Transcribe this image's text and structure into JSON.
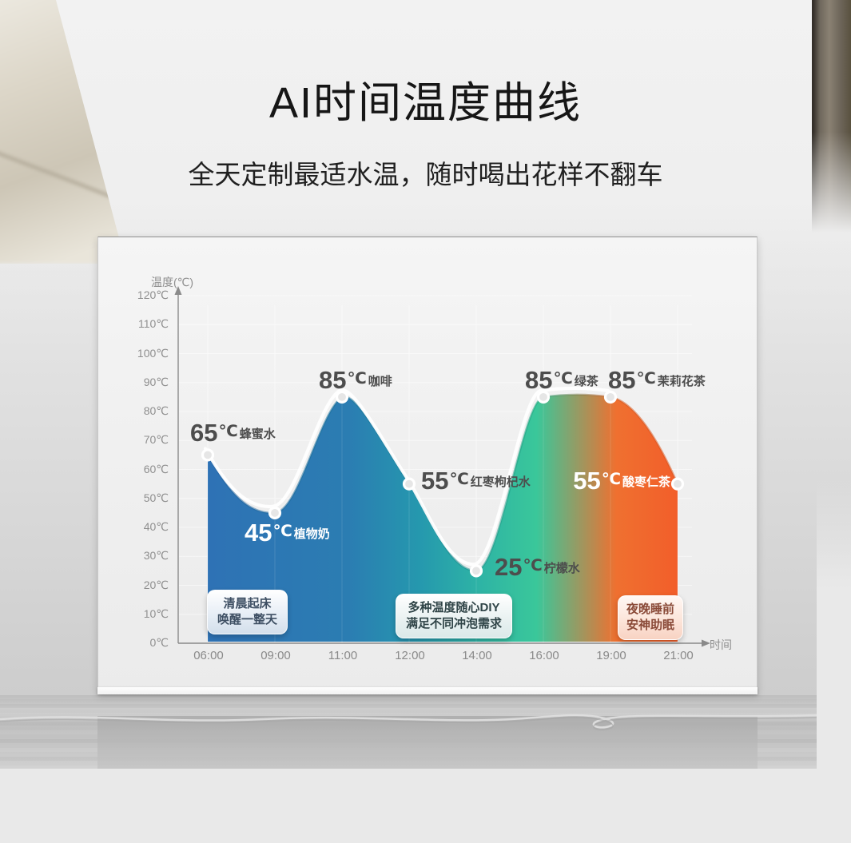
{
  "header": {
    "title": "AI时间温度曲线",
    "subtitle": "全天定制最适水温，随时喝出花样不翻车"
  },
  "chart_data": {
    "type": "area",
    "title": "AI时间温度曲线",
    "xlabel": "时间",
    "ylabel": "温度(℃)",
    "unit": "℃",
    "ylim": [
      0,
      120
    ],
    "y_tick_step": 10,
    "grid": true,
    "legend": false,
    "y_ticks": [
      "120℃",
      "110℃",
      "100℃",
      "90℃",
      "80℃",
      "70℃",
      "60℃",
      "50℃",
      "40℃",
      "30℃",
      "20℃",
      "10℃",
      "0℃"
    ],
    "x_ticks": [
      "06:00",
      "09:00",
      "11:00",
      "12:00",
      "14:00",
      "16:00",
      "19:00",
      "21:00"
    ],
    "series": [
      {
        "name": "AI时间温度曲线",
        "points": [
          {
            "time": "06:00",
            "temp": 65,
            "drink": "蜂蜜水"
          },
          {
            "time": "09:00",
            "temp": 45,
            "drink": "植物奶"
          },
          {
            "time": "11:00",
            "temp": 85,
            "drink": "咖啡"
          },
          {
            "time": "12:00",
            "temp": 55,
            "drink": "红枣枸杞水"
          },
          {
            "time": "14:00",
            "temp": 25,
            "drink": "柠檬水"
          },
          {
            "time": "16:00",
            "temp": 85,
            "drink": "绿茶"
          },
          {
            "time": "19:00",
            "temp": 85,
            "drink": "茉莉花茶"
          },
          {
            "time": "21:00",
            "temp": 55,
            "drink": "酸枣仁茶"
          }
        ]
      }
    ],
    "callouts": [
      {
        "line1": "清晨起床",
        "line2": "唤醒一整天",
        "theme": "blue"
      },
      {
        "line1": "多种温度随心DIY",
        "line2": "满足不同冲泡需求",
        "theme": "teal"
      },
      {
        "line1": "夜晚睡前",
        "line2": "安神助眠",
        "theme": "orange"
      }
    ],
    "colors": {
      "area_gradient": [
        {
          "offset": "0%",
          "color": "#2e72b5"
        },
        {
          "offset": "30%",
          "color": "#2b7db2"
        },
        {
          "offset": "45%",
          "color": "#2598ae"
        },
        {
          "offset": "58%",
          "color": "#2eb4a5"
        },
        {
          "offset": "70%",
          "color": "#3ac79a"
        },
        {
          "offset": "87%",
          "color": "#ef7030"
        },
        {
          "offset": "100%",
          "color": "#f25e2a"
        }
      ],
      "edge_gradient": [
        {
          "offset": "0%",
          "color": "#1e5c9c"
        },
        {
          "offset": "45%",
          "color": "#147e93"
        },
        {
          "offset": "70%",
          "color": "#1fa37d"
        },
        {
          "offset": "87%",
          "color": "#d2551c"
        },
        {
          "offset": "100%",
          "color": "#d84e18"
        }
      ],
      "label_dark": "#4d4d4d",
      "label_light": "#ffffff",
      "axis": "#8a8a8a",
      "tick_text": "#8f8f8f",
      "grid_line": "#ffffff",
      "marker_fill": "#e6e6e6",
      "marker_ring": "#ffffff"
    }
  }
}
